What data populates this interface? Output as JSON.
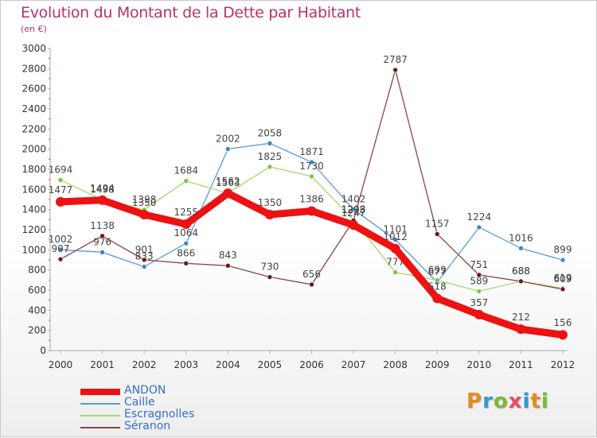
{
  "title": "Evolution du Montant de la Dette par Habitant",
  "subtitle": "(en €)",
  "logo": {
    "text": "Proxiti",
    "colors": [
      "#e8891f",
      "#2f9ad6",
      "#7ab93a",
      "#e84a5f",
      "#2f9ad6",
      "#e8891f",
      "#7ab93a"
    ]
  },
  "chart_data": {
    "type": "line",
    "x": [
      "2000",
      "2001",
      "2002",
      "2003",
      "2004",
      "2005",
      "2006",
      "2007",
      "2008",
      "2009",
      "2010",
      "2011",
      "2012"
    ],
    "ylim": [
      0,
      3000
    ],
    "yticks": [
      "0",
      "200",
      "400",
      "600",
      "800",
      "1000",
      "1200",
      "1400",
      "1600",
      "1800",
      "2000",
      "2200",
      "2400",
      "2600",
      "2800",
      "3000"
    ],
    "grid": false,
    "legend_position": "bottom-left",
    "series": [
      {
        "name": "Caille",
        "color": "#5a9bd5",
        "point_color": "#3c86c8",
        "values": [
          1002,
          976,
          833,
          1064,
          2002,
          2058,
          1871,
          1402,
          1101,
          677,
          1224,
          1016,
          899
        ],
        "labels": [
          "1002",
          "976",
          "833",
          "1064",
          "2002",
          "2058",
          "1871",
          "1402",
          "1101",
          "677",
          "1224",
          "1016",
          "899"
        ]
      },
      {
        "name": "Escragnolles",
        "color": "#a6d96a",
        "point_color": "#7ac943",
        "values": [
          1694,
          1498,
          1398,
          1684,
          1563,
          1825,
          1730,
          1298,
          777,
          699,
          589,
          688,
          619
        ],
        "labels": [
          "1694",
          "1498",
          "1398",
          "1684",
          "1563",
          "1825",
          "1730",
          "1298",
          "777",
          "699",
          "589",
          "688",
          "619"
        ]
      },
      {
        "name": "Séranon",
        "color": "#8b4444",
        "point_color": "#6b1a1a",
        "values": [
          907,
          1138,
          901,
          866,
          843,
          730,
          656,
          1293,
          2787,
          1157,
          751,
          688,
          609
        ],
        "labels": [
          "907",
          "1138",
          "901",
          "866",
          "843",
          "730",
          "656",
          "1293",
          "2787",
          "1157",
          "751",
          "688",
          "609"
        ]
      },
      {
        "name": "ANDON",
        "color": "#ee1111",
        "point_color": "#ee1111",
        "values": [
          1477,
          1494,
          1350,
          1255,
          1562,
          1350,
          1386,
          1247,
          1012,
          518,
          357,
          212,
          156
        ],
        "labels": [
          "1477",
          "1494",
          "1350",
          "1255",
          "1562",
          "1350",
          "1386",
          "1247",
          "1012",
          "518",
          "357",
          "212",
          "156"
        ]
      }
    ],
    "legend_order": [
      "ANDON",
      "Caille",
      "Escragnolles",
      "Séranon"
    ]
  }
}
